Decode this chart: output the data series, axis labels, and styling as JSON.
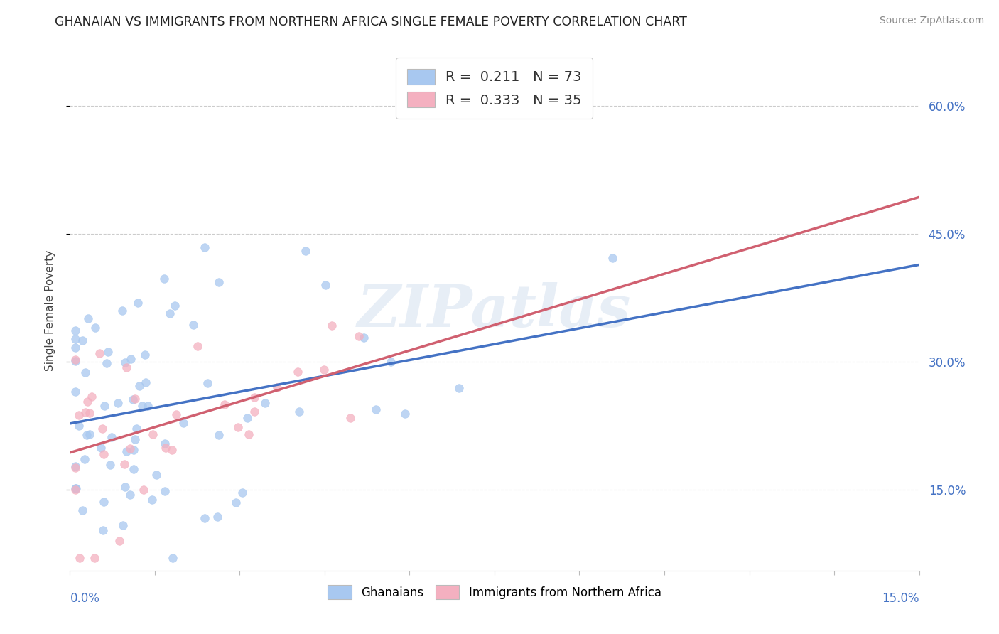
{
  "title": "GHANAIAN VS IMMIGRANTS FROM NORTHERN AFRICA SINGLE FEMALE POVERTY CORRELATION CHART",
  "source": "Source: ZipAtlas.com",
  "ylabel": "Single Female Poverty",
  "yaxis_ticks": [
    0.15,
    0.3,
    0.45,
    0.6
  ],
  "yaxis_labels": [
    "15.0%",
    "30.0%",
    "45.0%",
    "60.0%"
  ],
  "xlim": [
    0.0,
    0.15
  ],
  "ylim": [
    0.055,
    0.665
  ],
  "legend_blue_R": "0.211",
  "legend_blue_N": "73",
  "legend_pink_R": "0.333",
  "legend_pink_N": "35",
  "watermark": "ZIPatlas",
  "blue_scatter_color": "#a8c8f0",
  "pink_scatter_color": "#f4b0c0",
  "blue_line_color": "#4472c4",
  "pink_line_color": "#d06070",
  "title_color": "#222222",
  "source_color": "#888888",
  "axis_label_color": "#444444",
  "tick_label_color": "#4472c4",
  "grid_color": "#cccccc",
  "blue_seed": 12,
  "pink_seed": 34,
  "blue_N": 73,
  "pink_N": 35,
  "blue_R": 0.211,
  "pink_R": 0.333
}
